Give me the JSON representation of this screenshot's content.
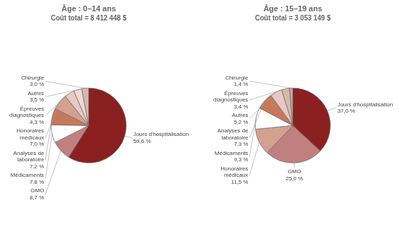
{
  "chart_data": [
    {
      "type": "pie",
      "title": "Âge : 0–14 ans\nCoût total = 8 412 448 $",
      "categories": [
        "Jours d'hospitalisation\n59,6 %",
        "GMO\n8,7 %",
        "Médicaments\n7,8 %",
        "Analyses de\nlaboratoire\n7,2 %",
        "Honoraires\nmédicaux\n7,0 %",
        "Épreuves\ndiagnostiques\n4,3 %",
        "Autres\n3,5 %",
        "Chirurgie\n3,0 %"
      ],
      "values": [
        59.6,
        8.7,
        7.8,
        7.2,
        7.0,
        4.3,
        3.5,
        3.0
      ],
      "colors": [
        "#8B2020",
        "#C08080",
        "#FFFFFF",
        "#C8785A",
        "#D4A090",
        "#E8C8C0",
        "#F0D8D0",
        "#D4B8B0"
      ]
    },
    {
      "type": "pie",
      "title": "Âge : 15–19 ans\nCoût total = 3 053 149 $",
      "categories": [
        "Jours d'hospitalisation\n37,0 %",
        "GMO\n25,0 %",
        "Honoraires\nmédicaux\n11,5 %",
        "Médicaments\n9,3 %",
        "Analyses de\nlaboratoire\n7,3 %",
        "Autres\n5,2 %",
        "Épreuves\ndiagnostiques\n3,4 %",
        "Chirurgie\n1,4 %"
      ],
      "values": [
        37.0,
        25.0,
        11.5,
        9.3,
        7.3,
        5.2,
        3.4,
        1.4
      ],
      "colors": [
        "#8B2020",
        "#C08080",
        "#D4A090",
        "#FFFFFF",
        "#C8785A",
        "#E8C8C0",
        "#D4B8B0",
        "#C4A8A0"
      ]
    }
  ]
}
